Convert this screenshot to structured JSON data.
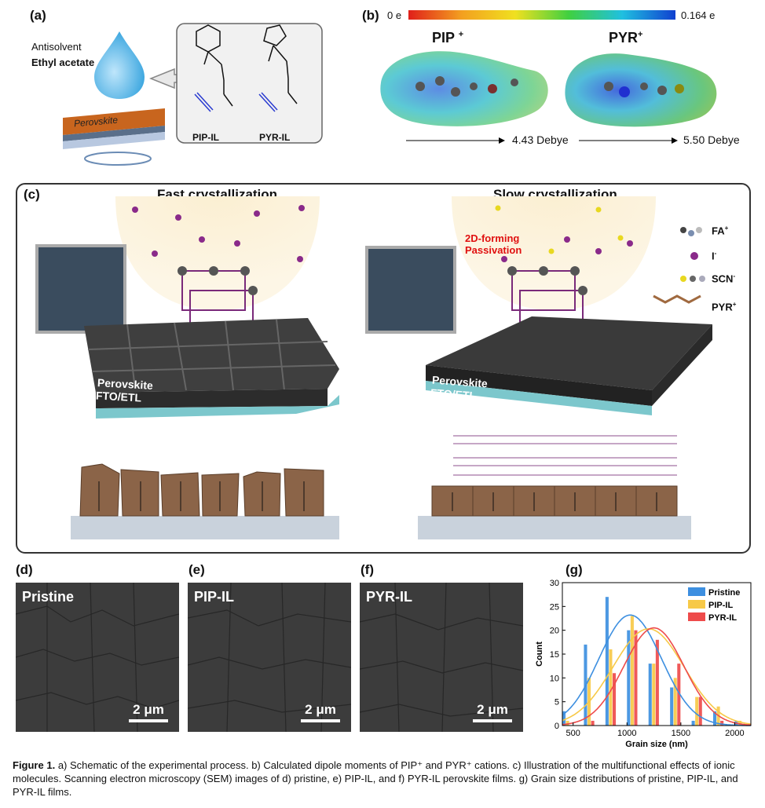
{
  "panels": {
    "a": {
      "label": "(a)",
      "antisolvent": "Antisolvent",
      "solvent": "Ethyl acetate",
      "film": "Perovskite",
      "ionic_liquids": [
        "PIP-IL",
        "PYR-IL"
      ]
    },
    "b": {
      "label": "(b)",
      "scale_min": "0 e",
      "scale_max": "0.164 e",
      "cations": [
        {
          "name": "PIP",
          "superscript": "+",
          "dipole": "4.43 Debye"
        },
        {
          "name": "PYR",
          "superscript": "+",
          "dipole": "5.50 Debye"
        }
      ]
    },
    "c": {
      "label": "(c)",
      "left_title": "Fast crystallization",
      "right_title": "Slow crystallization",
      "annotation": [
        "2D-forming",
        "Passivation"
      ],
      "layer_top": "Perovskite",
      "layer_bottom": "FTO/ETL",
      "legend": [
        {
          "label": "FA",
          "sup": "+"
        },
        {
          "label": "I",
          "sup": "-"
        },
        {
          "label": "SCN",
          "sup": "-"
        },
        {
          "label": "PYR",
          "sup": "+"
        }
      ]
    },
    "d": {
      "label": "(d)",
      "title": "Pristine",
      "scale": "2 μm"
    },
    "e": {
      "label": "(e)",
      "title": "PIP-IL",
      "scale": "2 μm"
    },
    "f": {
      "label": "(f)",
      "title": "PYR-IL",
      "scale": "2 μm"
    },
    "g": {
      "label": "(g)"
    }
  },
  "colors": {
    "pristine": "#3d8fe0",
    "pip": "#f7c948",
    "pyr": "#ee4b4b",
    "perovskite_grain": "#8b6448",
    "film_dark": "#3a3a3a",
    "substrate": "#c9d2dc"
  },
  "chart_data": {
    "type": "bar",
    "xlabel": "Grain size (nm)",
    "ylabel": "Count",
    "xlim": [
      400,
      2150
    ],
    "ylim": [
      0,
      30
    ],
    "xticks": [
      500,
      1000,
      1500,
      2000
    ],
    "yticks": [
      0,
      5,
      10,
      15,
      20,
      25,
      30
    ],
    "legend_position": "top-right",
    "bin_width": 100,
    "series": [
      {
        "name": "Pristine",
        "centers": [
          450,
          650,
          850,
          1050,
          1250,
          1450,
          1650,
          1850,
          2050
        ],
        "values": [
          3,
          17,
          27,
          20,
          13,
          8,
          1,
          3,
          1
        ],
        "fit": {
          "mean": 1030,
          "sigma": 290,
          "peak": 23.2
        }
      },
      {
        "name": "PIP-IL",
        "centers": [
          450,
          650,
          850,
          1050,
          1250,
          1450,
          1650,
          1850,
          2050
        ],
        "values": [
          1,
          10,
          16,
          23,
          13,
          10,
          6,
          4,
          1
        ],
        "fit": {
          "mean": 1200,
          "sigma": 330,
          "peak": 20.3
        }
      },
      {
        "name": "PYR-IL",
        "centers": [
          650,
          850,
          1050,
          1250,
          1450,
          1650,
          1850
        ],
        "values": [
          1,
          11,
          20,
          18,
          13,
          6,
          1
        ],
        "fit": {
          "mean": 1250,
          "sigma": 280,
          "peak": 20.5
        }
      }
    ]
  },
  "caption": {
    "label": "Figure 1.",
    "text": "a) Schematic of the experimental process. b) Calculated dipole moments of PIP⁺ and PYR⁺ cations. c) Illustration of the multifunctional effects of ionic molecules. Scanning electron microscopy (SEM) images of d) pristine, e) PIP-IL, and f) PYR-IL perovskite films. g) Grain size distributions of pristine, PIP-IL, and PYR-IL films."
  }
}
